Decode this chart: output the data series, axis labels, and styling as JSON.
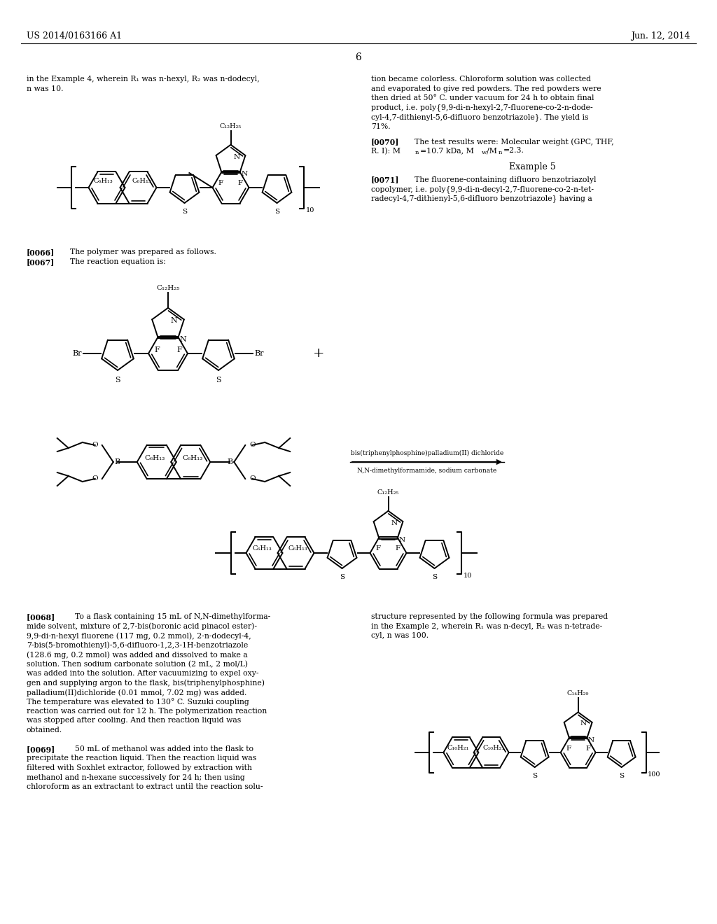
{
  "background_color": "#ffffff",
  "page_number": "6",
  "header_left": "US 2014/0163166 A1",
  "header_right": "Jun. 12, 2014"
}
